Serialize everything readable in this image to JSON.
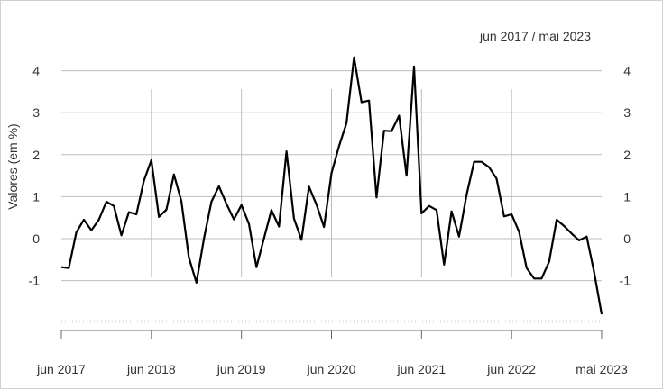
{
  "chart_data": {
    "type": "line",
    "title": "",
    "period_label": "jun 2017 / mai 2023",
    "ylabel": "Valores (em %)",
    "xlabel": "",
    "ylim": [
      -1.85,
      4.45
    ],
    "yticks": [
      -1,
      0,
      1,
      2,
      3,
      4
    ],
    "ytick_labels": [
      "-1",
      "0",
      "1",
      "2",
      "3",
      "4"
    ],
    "xtick_labels": [
      "jun 2017",
      "jun 2018",
      "jun 2019",
      "jun 2020",
      "jun 2021",
      "jun 2022",
      "mai 2023"
    ],
    "grid": true,
    "line_color": "#000000",
    "series": [
      {
        "values": [
          -0.68,
          -0.7,
          0.15,
          0.45,
          0.2,
          0.45,
          0.88,
          0.78,
          0.08,
          0.63,
          0.58,
          1.38,
          1.87,
          0.52,
          0.69,
          1.53,
          0.89,
          -0.45,
          -1.05,
          0.0,
          0.88,
          1.25,
          0.83,
          0.46,
          0.8,
          0.35,
          -0.68,
          0.0,
          0.68,
          0.29,
          2.08,
          0.48,
          -0.03,
          1.24,
          0.81,
          0.28,
          1.56,
          2.2,
          2.75,
          4.32,
          3.25,
          3.29,
          0.98,
          2.57,
          2.56,
          2.93,
          1.5,
          4.1,
          0.6,
          0.78,
          0.68,
          -0.62,
          0.65,
          0.05,
          1.05,
          1.83,
          1.83,
          1.7,
          1.43,
          0.53,
          0.58,
          0.16,
          -0.7,
          -0.95,
          -0.95,
          -0.55,
          0.45,
          0.3,
          0.12,
          -0.04,
          0.05,
          -0.8,
          -1.8
        ]
      }
    ]
  }
}
